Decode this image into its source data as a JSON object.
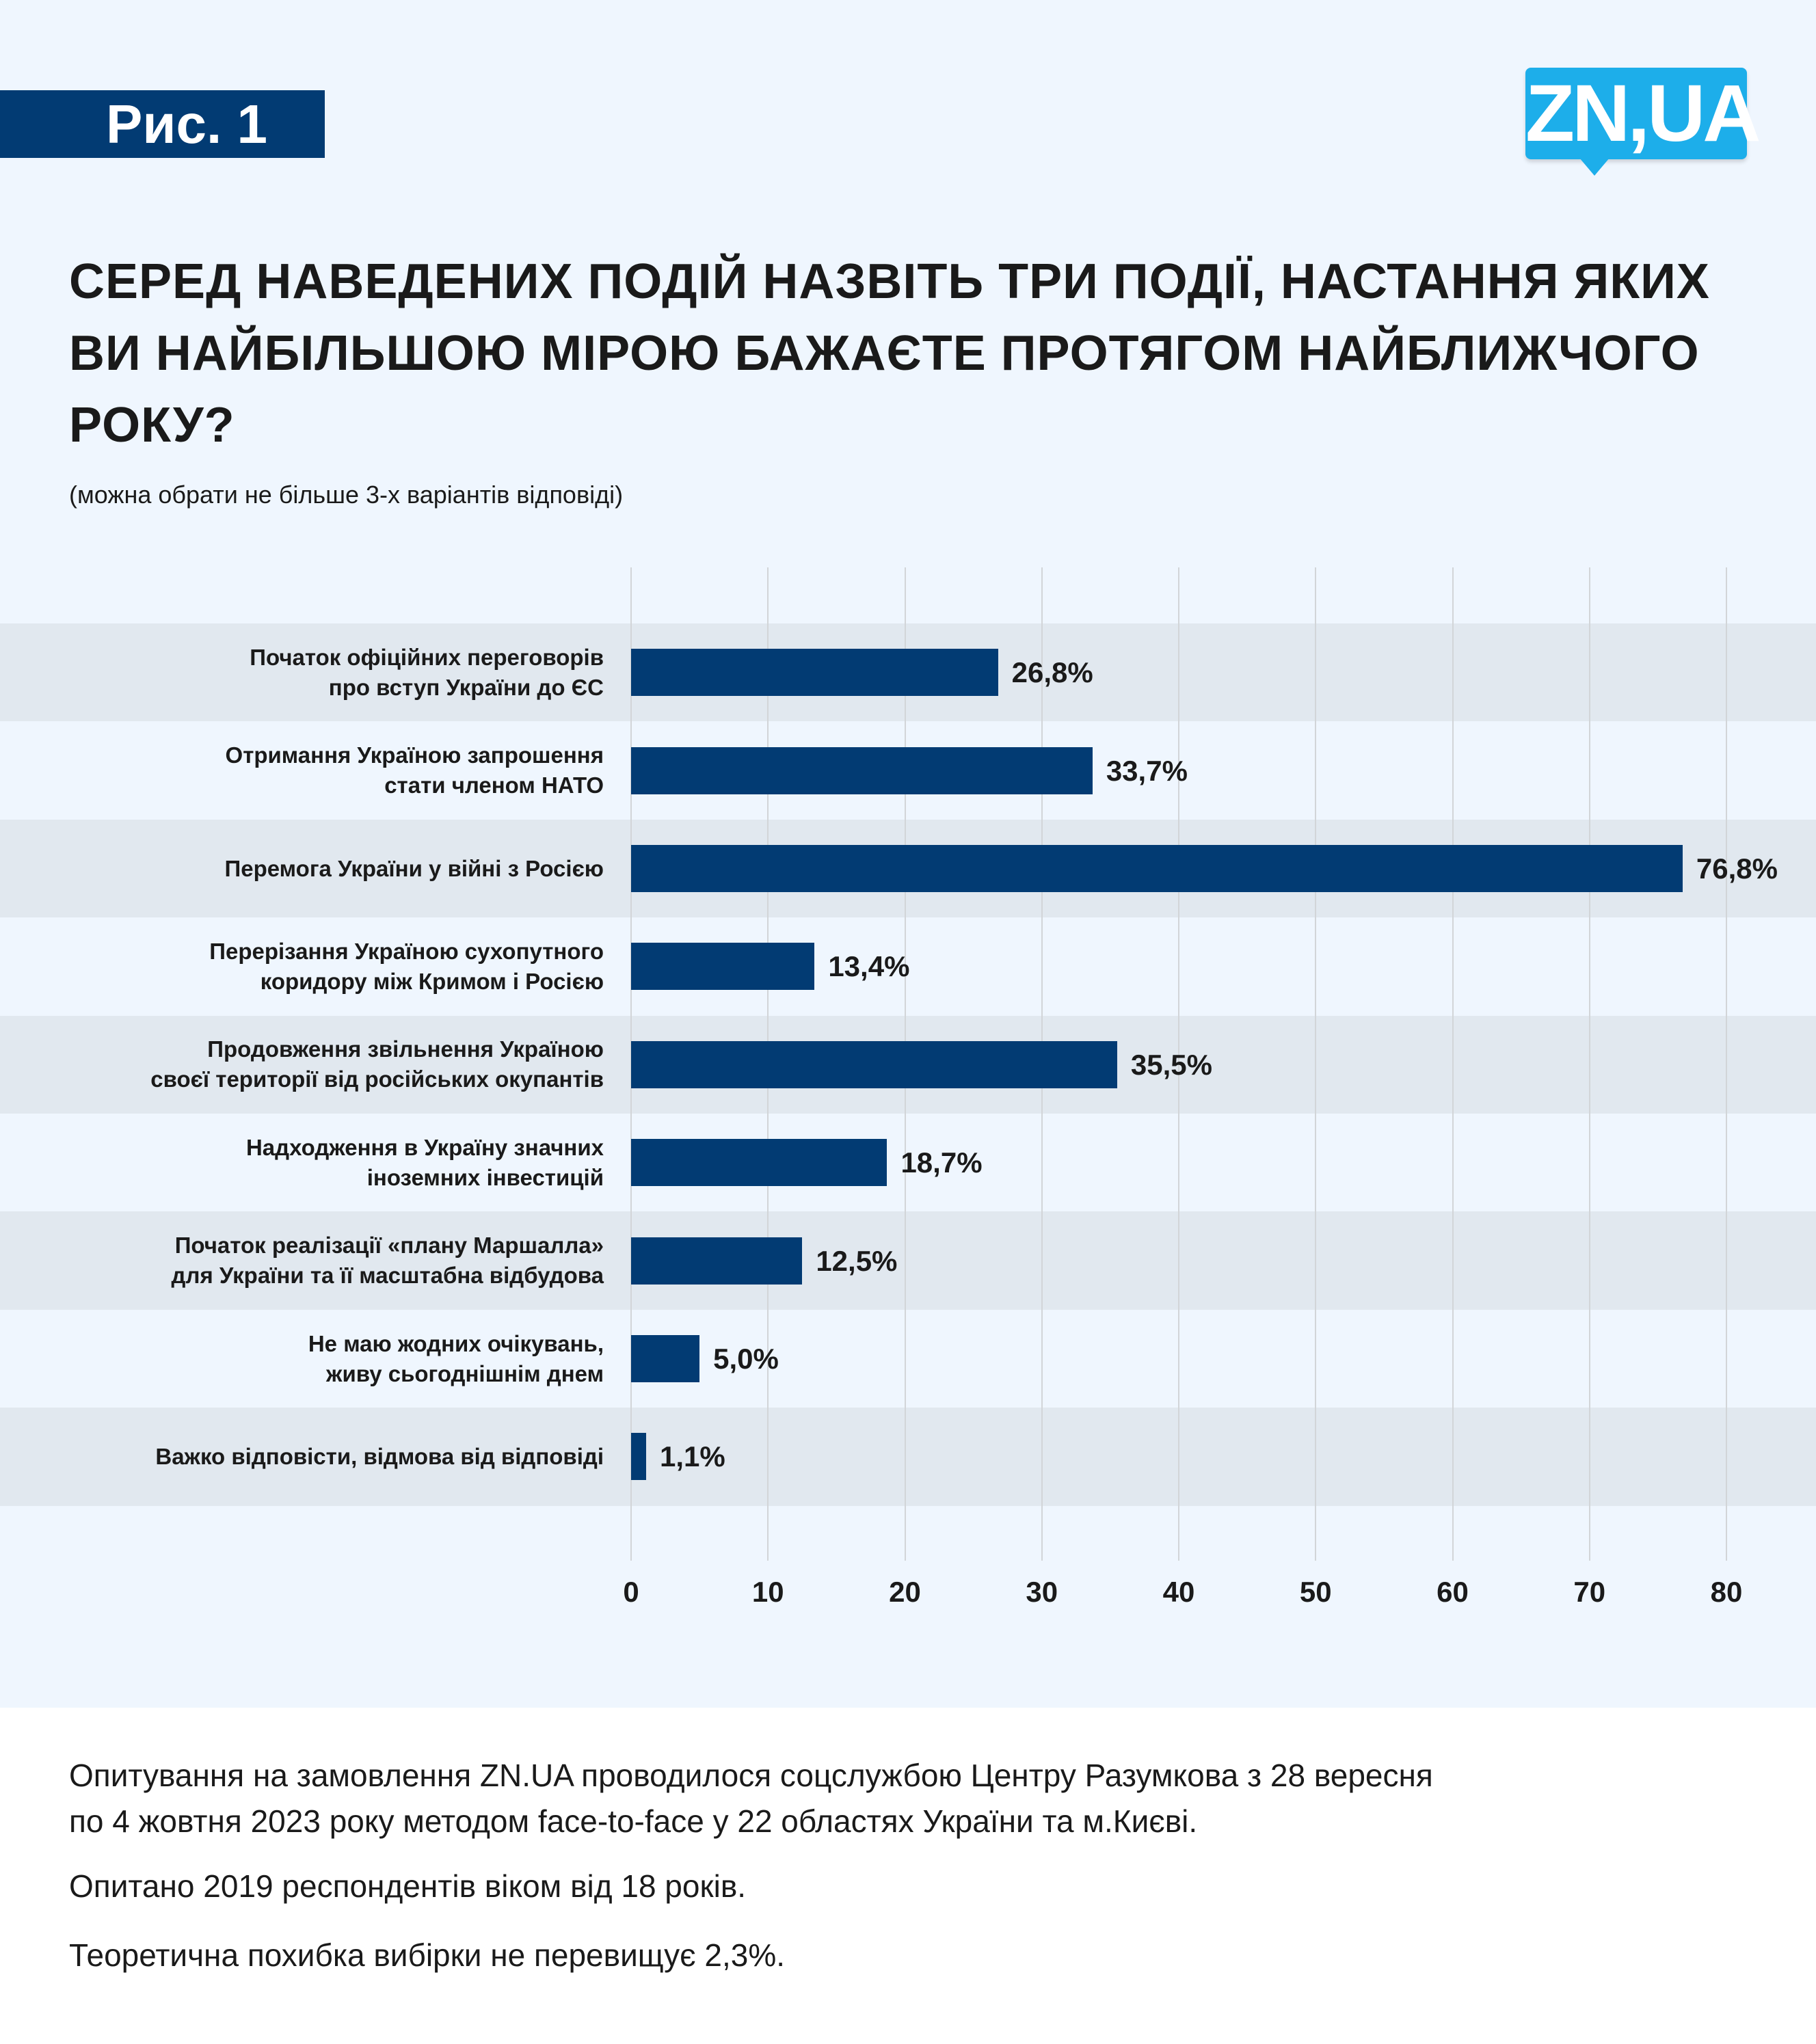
{
  "header": {
    "figure_label": "Рис. 1",
    "logo_text": "ZN,UA"
  },
  "title": "СЕРЕД НАВЕДЕНИХ ПОДІЙ НАЗВІТЬ ТРИ ПОДІЇ, НАСТАННЯ ЯКИХ ВИ НАЙБІЛЬШОЮ МІРОЮ БАЖАЄТЕ ПРОТЯГОМ НАЙБЛИЖЧОГО РОКУ?",
  "subtitle": "(можна обрати не більше 3-х варіантів відповіді)",
  "colors": {
    "bar": "#023b73",
    "band": "#e1e8ef",
    "background": "#eff6fe",
    "logo": "#1daeea"
  },
  "chart_data": {
    "type": "bar",
    "orientation": "horizontal",
    "title": "СЕРЕД НАВЕДЕНИХ ПОДІЙ НАЗВІТЬ ТРИ ПОДІЇ, НАСТАННЯ ЯКИХ ВИ НАЙБІЛЬШОЮ МІРОЮ БАЖАЄТЕ ПРОТЯГОМ НАЙБЛИЖЧОГО РОКУ?",
    "categories": [
      "Початок офіційних переговорів\nпро вступ України до ЄС",
      "Отримання Україною запрошення\nстати членом НАТО",
      "Перемога України у війні з Росією",
      "Перерізання Україною сухопутного\nкоридору між Кримом і Росією",
      "Продовження звільнення Україною\nсвоєї території від російських окупантів",
      "Надходження в Україну значних\nіноземних інвестицій",
      "Початок реалізації «плану Маршалла»\nдля України та її масштабна відбудова",
      "Не маю жодних очікувань,\nживу сьогоднішнім днем",
      "Важко відповісти, відмова від відповіді"
    ],
    "values": [
      26.8,
      33.7,
      76.8,
      13.4,
      35.5,
      18.7,
      12.5,
      5.0,
      1.1
    ],
    "value_labels": [
      "26,8%",
      "33,7%",
      "76,8%",
      "13,4%",
      "35,5%",
      "18,7%",
      "12,5%",
      "5,0%",
      "1,1%"
    ],
    "xlim": [
      0,
      80
    ],
    "xticks": [
      "0",
      "10",
      "20",
      "30",
      "40",
      "50",
      "60",
      "70",
      "80"
    ],
    "grid": true
  },
  "footer": {
    "lines": [
      "Опитування на замовлення ZN.UA проводилося соцслужбою Центру Разумкова з 28 вересня",
      "по 4 жовтня 2023 року методом face-to-face у 22 областях України та м.Києві.",
      "Опитано 2019 респондентів віком від 18 років.",
      "Теоретична похибка вибірки не перевищує 2,3%."
    ]
  }
}
